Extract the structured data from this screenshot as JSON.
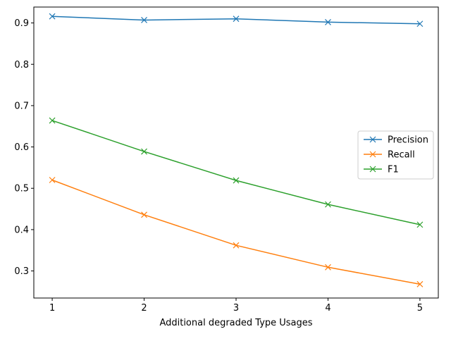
{
  "chart_data": {
    "type": "line",
    "title": "",
    "xlabel": "Additional degraded Type Usages",
    "ylabel": "",
    "x": [
      1,
      2,
      3,
      4,
      5
    ],
    "xticks": [
      "1",
      "2",
      "3",
      "4",
      "5"
    ],
    "yticks": [
      "0.3",
      "0.4",
      "0.5",
      "0.6",
      "0.7",
      "0.8",
      "0.9"
    ],
    "xlim": [
      0.8,
      5.2
    ],
    "ylim": [
      0.2345,
      0.9385
    ],
    "grid": false,
    "legend_position": "center-right",
    "marker": "x",
    "series": [
      {
        "name": "Precision",
        "color": "#1f77b4",
        "values": [
          0.916,
          0.907,
          0.91,
          0.902,
          0.898
        ]
      },
      {
        "name": "Recall",
        "color": "#ff7f0e",
        "values": [
          0.52,
          0.436,
          0.362,
          0.309,
          0.268
        ]
      },
      {
        "name": "F1",
        "color": "#2ca02c",
        "values": [
          0.664,
          0.589,
          0.519,
          0.461,
          0.412
        ]
      }
    ]
  }
}
